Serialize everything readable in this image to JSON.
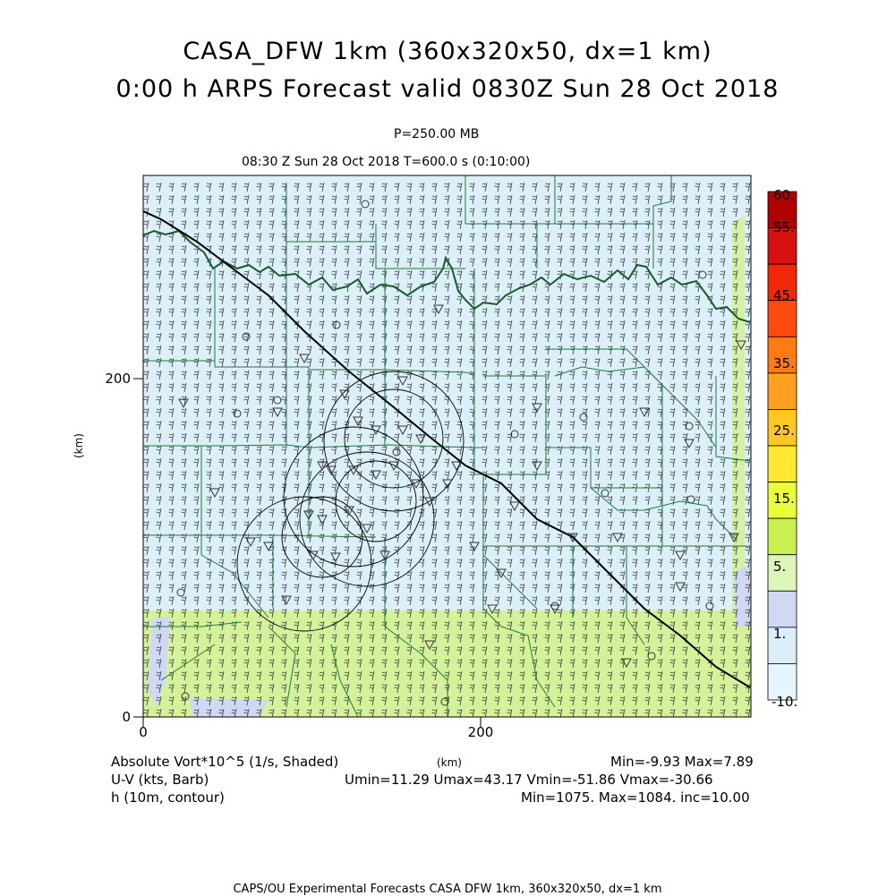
{
  "title": {
    "line1": "CASA_DFW 1km (360x320x50, dx=1 km)",
    "line2": "0:00 h ARPS Forecast valid 0830Z Sun 28 Oct 2018"
  },
  "subtitle": {
    "pressure": "P=250.00 MB",
    "time": "08:30 Z Sun 28 Oct 2018    T=600.0 s (0:10:00)"
  },
  "axes": {
    "x_ticks": [
      "0",
      "200"
    ],
    "y_ticks": [
      "0",
      "200"
    ],
    "y_label": "(km)",
    "x_label": "(km)"
  },
  "colorbar": {
    "labels": [
      "60.",
      "55.",
      "45.",
      "35.",
      "25.",
      "15.",
      "5.",
      "1.",
      "-10."
    ],
    "colors": [
      "#b00000",
      "#d81010",
      "#f02808",
      "#ff4a10",
      "#ff7a10",
      "#ffa020",
      "#ffc820",
      "#ffe830",
      "#eaff3a",
      "#c8f050",
      "#dcf6b8",
      "#d0d8f4",
      "#dceefa",
      "#e6f4fc"
    ]
  },
  "legend": {
    "field1_label": "Absolute Vort*10^5 (1/s, Shaded)",
    "field1_stats": "Min=-9.93 Max=7.89",
    "field2_label": "U-V (kts, Barb)",
    "field2_stats": "Umin=11.29 Umax=43.17 Vmin=-51.86 Vmax=-30.66",
    "field3_label": "h (10m, contour)",
    "field3_stats": "Min=1075. Max=1084. inc=10.00"
  },
  "footer": "CAPS/OU Experimental Forecasts  CASA DFW 1km, 360x320x50, dx=1 km",
  "map_colors": {
    "background_fill": "#dcf0fa",
    "southern_band": "#d4f29a",
    "county_lines": "#1f7a3a",
    "river_line": "#165c28",
    "contour": "#000000"
  }
}
